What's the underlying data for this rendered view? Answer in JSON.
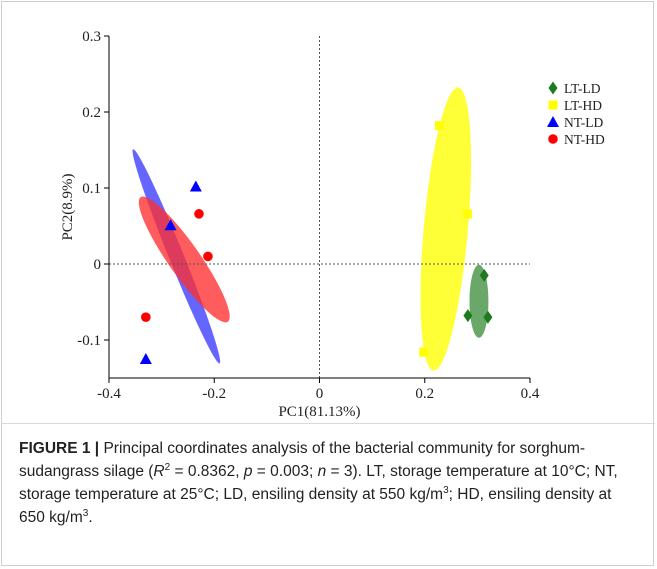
{
  "chart_data": {
    "type": "scatter",
    "xlabel": "PC1(81.13%)",
    "ylabel": "PC2(8.9%)",
    "xlim": [
      -0.4,
      0.4
    ],
    "ylim": [
      -0.15,
      0.3
    ],
    "x_ticks": [
      "-0.4",
      "-0.2",
      "0",
      "0.2",
      "0.4"
    ],
    "y_ticks": [
      "0.3",
      "0.2",
      "0.1",
      "0",
      "-0.1"
    ],
    "x_tick_values": [
      -0.4,
      -0.2,
      0,
      0.2,
      0.4
    ],
    "y_tick_values": [
      0.3,
      0.2,
      0.1,
      0,
      -0.1
    ],
    "legend_position": "top-right",
    "reference_lines": {
      "x": 0,
      "y": 0,
      "style": "dotted"
    },
    "series": [
      {
        "name": "LT-LD",
        "marker": "diamond",
        "color": "#1f7a1f",
        "ellipse_color": "#3f8f3f",
        "points": [
          [
            0.313,
            -0.015
          ],
          [
            0.282,
            -0.068
          ],
          [
            0.32,
            -0.07
          ]
        ],
        "ellipse": {
          "center": [
            0.303,
            -0.049
          ],
          "semi_axes": [
            0.018,
            0.048
          ],
          "rotation_deg": 0
        }
      },
      {
        "name": "LT-HD",
        "marker": "square",
        "color": "#ffff00",
        "ellipse_color": "#ffff00",
        "points": [
          [
            0.228,
            0.182
          ],
          [
            0.281,
            0.066
          ],
          [
            0.198,
            -0.116
          ]
        ],
        "ellipse": {
          "center": [
            0.24,
            0.046
          ],
          "semi_axes": [
            0.042,
            0.187
          ],
          "rotation_deg": 5
        }
      },
      {
        "name": "NT-LD",
        "marker": "triangle",
        "color": "#0000ff",
        "ellipse_color": "#3a3aff",
        "points": [
          [
            -0.235,
            0.102
          ],
          [
            -0.283,
            0.051
          ],
          [
            -0.33,
            -0.125
          ]
        ],
        "ellipse": {
          "center": [
            -0.272,
            0.01
          ],
          "semi_axes": [
            0.014,
            0.152
          ],
          "rotation_deg": -22
        }
      },
      {
        "name": "NT-HD",
        "marker": "circle",
        "color": "#ff0000",
        "ellipse_color": "#ff3030",
        "points": [
          [
            -0.229,
            0.066
          ],
          [
            -0.212,
            0.01
          ],
          [
            -0.33,
            -0.07
          ]
        ],
        "ellipse": {
          "center": [
            -0.257,
            0.006
          ],
          "semi_axes": [
            0.03,
            0.1
          ],
          "rotation_deg": -35
        }
      }
    ]
  },
  "caption": {
    "lead": "FIGURE 1 |",
    "part1": " Principal coordinates analysis of the bacterial community for sorghum-sudangrass silage (",
    "r_symbol": "R",
    "r_sup": "2",
    "part2": " = 0.8362, ",
    "p_symbol": "p",
    "part3": " = 0.003; ",
    "n_symbol": "n",
    "part4": " = 3). LT, storage temperature at 10°C; NT, storage temperature at 25°C; LD, ensiling density at 550 kg/m",
    "sup1": "3",
    "part5": "; HD, ensiling density at 650 kg/m",
    "sup2": "3",
    "part6": "."
  }
}
